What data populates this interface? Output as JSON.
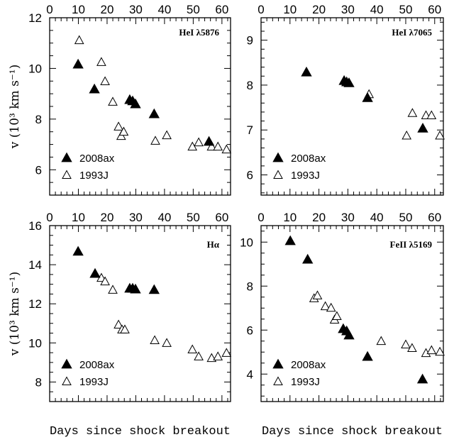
{
  "colors": {
    "marker": "#000000",
    "background": "#ffffff"
  },
  "chart_data": [
    {
      "type": "scatter",
      "title": "HeI λ5876",
      "xlabel": "",
      "ylabel": "v (10³ km s⁻¹)",
      "xlim": [
        0,
        63
      ],
      "ylim": [
        5,
        12
      ],
      "xticks": [
        0,
        10,
        20,
        30,
        40,
        50,
        60
      ],
      "yticks": [
        6,
        8,
        10,
        12
      ],
      "grid": false,
      "legend": "bottom-left",
      "series": [
        {
          "name": "2008ax",
          "marker": "filled-triangle",
          "x": [
            9.9,
            15.6,
            27.9,
            28.9,
            29.9,
            36.4,
            55.5
          ],
          "y": [
            10.15,
            9.17,
            8.75,
            8.7,
            8.58,
            8.19,
            7.1
          ]
        },
        {
          "name": "1993J",
          "marker": "open-triangle",
          "x": [
            10.3,
            18,
            19.3,
            22,
            24,
            24.9,
            25.8,
            36.8,
            40.8,
            49.7,
            51.9,
            56.4,
            58.6,
            61.6
          ],
          "y": [
            11.1,
            10.24,
            9.48,
            8.67,
            7.69,
            7.32,
            7.49,
            7.13,
            7.35,
            6.9,
            7.07,
            6.9,
            6.9,
            6.79
          ]
        }
      ]
    },
    {
      "type": "scatter",
      "title": "HeI λ7065",
      "xlabel": "",
      "ylabel": "",
      "xlim": [
        0,
        63
      ],
      "ylim": [
        5.55,
        9.5
      ],
      "xticks": [
        0,
        10,
        20,
        30,
        40,
        50,
        60
      ],
      "yticks": [
        6,
        7,
        8,
        9
      ],
      "grid": false,
      "legend": "bottom-left",
      "series": [
        {
          "name": "2008ax",
          "marker": "filled-triangle",
          "x": [
            15.7,
            28.7,
            29.6,
            30.4,
            36.8,
            55.9
          ],
          "y": [
            8.28,
            8.09,
            8.06,
            8.04,
            7.71,
            7.03
          ]
        },
        {
          "name": "1993J",
          "marker": "open-triangle",
          "x": [
            37.3,
            50.3,
            52.3,
            57,
            58.9,
            61.8
          ],
          "y": [
            7.79,
            6.87,
            7.37,
            7.32,
            7.32,
            6.87
          ]
        }
      ]
    },
    {
      "type": "scatter",
      "title": "Hα",
      "xlabel": "Days since shock breakout",
      "ylabel": "v (10³ km s⁻¹)",
      "xlim": [
        0,
        63
      ],
      "ylim": [
        7,
        16
      ],
      "xticks": [
        0,
        10,
        20,
        30,
        40,
        50,
        60
      ],
      "yticks": [
        8,
        10,
        12,
        14,
        16
      ],
      "grid": false,
      "legend": "bottom-left",
      "series": [
        {
          "name": "2008ax",
          "marker": "filled-triangle",
          "x": [
            9.9,
            15.8,
            27.9,
            28.9,
            29.9,
            36.4
          ],
          "y": [
            14.66,
            13.53,
            12.77,
            12.77,
            12.73,
            12.7
          ]
        },
        {
          "name": "1993J",
          "marker": "open-triangle",
          "x": [
            18,
            19.3,
            22,
            24,
            25.2,
            26.2,
            36.6,
            40.8,
            49.7,
            51.9,
            56.4,
            58.6,
            61.6
          ],
          "y": [
            13.31,
            13.13,
            12.7,
            10.92,
            10.67,
            10.67,
            10.12,
            9.98,
            9.65,
            9.29,
            9.21,
            9.29,
            9.47
          ]
        }
      ]
    },
    {
      "type": "scatter",
      "title": "FeII λ5169",
      "xlabel": "Days since shock breakout",
      "ylabel": "",
      "xlim": [
        0,
        63
      ],
      "ylim": [
        2.75,
        10.75
      ],
      "xticks": [
        0,
        10,
        20,
        30,
        40,
        50,
        60
      ],
      "yticks": [
        4,
        6,
        8,
        10
      ],
      "grid": false,
      "legend": "bottom-left",
      "series": [
        {
          "name": "2008ax",
          "marker": "filled-triangle",
          "x": [
            10.1,
            16.1,
            28.4,
            29.6,
            30.4,
            36.8,
            55.8
          ],
          "y": [
            10.04,
            9.2,
            6.04,
            5.94,
            5.75,
            4.78,
            3.75
          ]
        },
        {
          "name": "1993J",
          "marker": "open-triangle",
          "x": [
            18.3,
            19.5,
            22.2,
            24.2,
            25.4,
            26.2,
            41.5,
            50,
            52.2,
            57,
            58.9,
            61.8
          ],
          "y": [
            7.43,
            7.56,
            7.07,
            7.0,
            6.46,
            6.62,
            5.49,
            5.33,
            5.17,
            4.94,
            5.07,
            5.0
          ]
        }
      ]
    }
  ]
}
